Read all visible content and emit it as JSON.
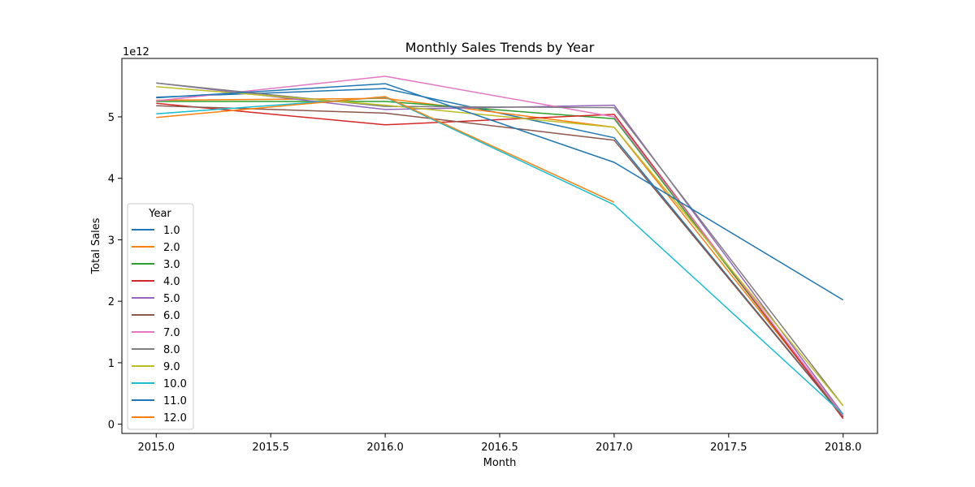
{
  "chart_data": {
    "type": "line",
    "title": "Monthly Sales Trends by Year",
    "xlabel": "Month",
    "ylabel": "Total Sales",
    "y_offset_text": "1e12",
    "y_scale": 1000000000000.0,
    "xlim": [
      2014.85,
      2018.15
    ],
    "ylim": [
      -0.15,
      5.95
    ],
    "xticks": [
      2015.0,
      2015.5,
      2016.0,
      2016.5,
      2017.0,
      2017.5,
      2018.0
    ],
    "xtick_labels": [
      "2015.0",
      "2015.5",
      "2016.0",
      "2016.5",
      "2017.0",
      "2017.5",
      "2018.0"
    ],
    "yticks": [
      0,
      1,
      2,
      3,
      4,
      5
    ],
    "ytick_labels": [
      "0",
      "1",
      "2",
      "3",
      "4",
      "5"
    ],
    "grid": false,
    "legend": {
      "title": "Year",
      "placement": "lower-left"
    },
    "series": [
      {
        "name": "1.0",
        "color": "#1f77b4",
        "x": [
          2015,
          2016,
          2017,
          2018
        ],
        "y": [
          5.32,
          5.46,
          4.66,
          0.12
        ]
      },
      {
        "name": "2.0",
        "color": "#ff7f0e",
        "x": [
          2015,
          2016,
          2017,
          2018
        ],
        "y": [
          5.27,
          5.3,
          4.83,
          0.13
        ]
      },
      {
        "name": "3.0",
        "color": "#2ca02c",
        "x": [
          2015,
          2016,
          2017,
          2018
        ],
        "y": [
          5.25,
          5.25,
          4.97,
          0.11
        ]
      },
      {
        "name": "4.0",
        "color": "#d62728",
        "x": [
          2015,
          2016,
          2017,
          2018
        ],
        "y": [
          5.22,
          4.87,
          5.04,
          0.09
        ]
      },
      {
        "name": "5.0",
        "color": "#9467bd",
        "x": [
          2015,
          2016,
          2017,
          2018
        ],
        "y": [
          5.55,
          5.12,
          5.19,
          0.16
        ]
      },
      {
        "name": "6.0",
        "color": "#8c564b",
        "x": [
          2015,
          2016,
          2017,
          2018
        ],
        "y": [
          5.18,
          5.06,
          4.62,
          0.12
        ]
      },
      {
        "name": "7.0",
        "color": "#e377c2",
        "x": [
          2015,
          2016,
          2017,
          2018
        ],
        "y": [
          5.26,
          5.66,
          5.0,
          0.14
        ]
      },
      {
        "name": "8.0",
        "color": "#7f7f7f",
        "x": [
          2015,
          2016,
          2017,
          2018
        ],
        "y": [
          5.55,
          5.17,
          5.15,
          0.3
        ]
      },
      {
        "name": "9.0",
        "color": "#bcbd22",
        "x": [
          2015,
          2016,
          2017,
          2018
        ],
        "y": [
          5.49,
          5.19,
          4.83,
          0.3
        ]
      },
      {
        "name": "10.0",
        "color": "#17becf",
        "x": [
          2015,
          2016,
          2017,
          2018
        ],
        "y": [
          5.05,
          5.32,
          3.57,
          0.16
        ]
      },
      {
        "name": "11.0",
        "color": "#1f77b4",
        "x": [
          2015,
          2016,
          2017,
          2018
        ],
        "y": [
          5.31,
          5.54,
          4.26,
          2.02
        ]
      },
      {
        "name": "12.0",
        "color": "#ff7f0e",
        "x": [
          2015,
          2016,
          2017
        ],
        "y": [
          4.99,
          5.33,
          3.61
        ]
      }
    ]
  }
}
